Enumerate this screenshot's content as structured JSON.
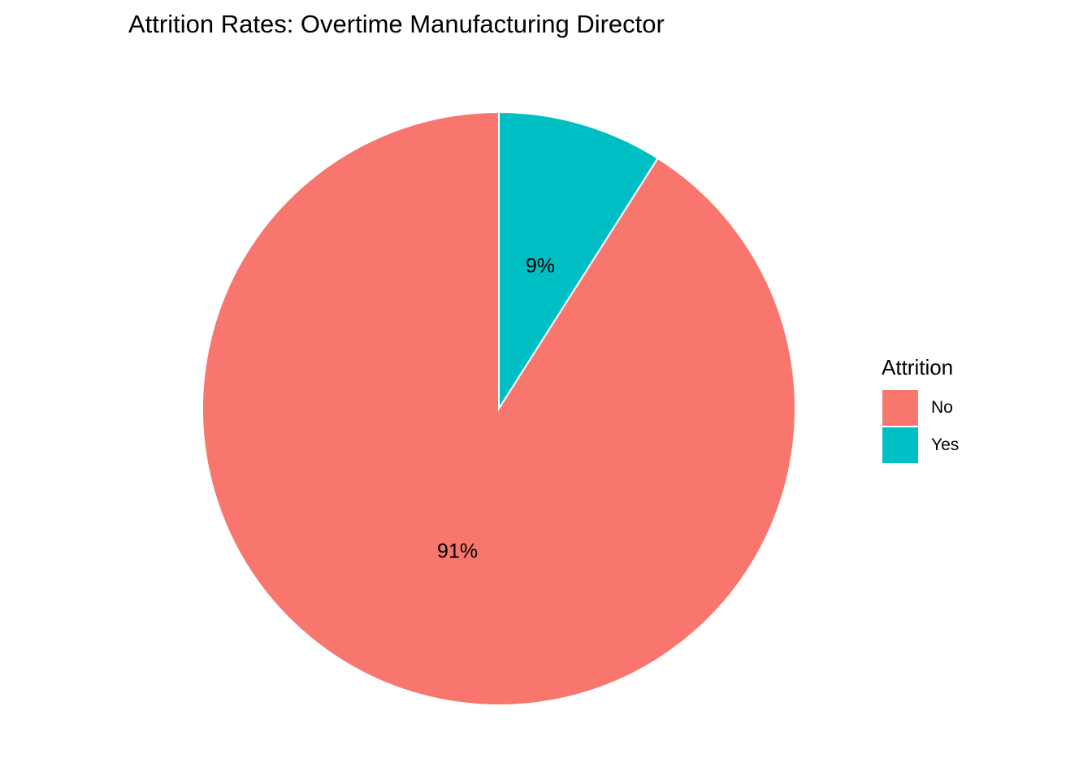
{
  "chart_data": {
    "type": "pie",
    "title": "Attrition Rates: Overtime Manufacturing Director",
    "legend": {
      "title": "Attrition",
      "position": "right",
      "entries": [
        {
          "label": "No",
          "color": "#F8766D"
        },
        {
          "label": "Yes",
          "color": "#00BFC4"
        }
      ]
    },
    "slices": [
      {
        "category": "No",
        "percent": 91,
        "label": "91%",
        "color": "#F8766D"
      },
      {
        "category": "Yes",
        "percent": 9,
        "label": "9%",
        "color": "#00BFC4"
      }
    ],
    "grid": false
  }
}
